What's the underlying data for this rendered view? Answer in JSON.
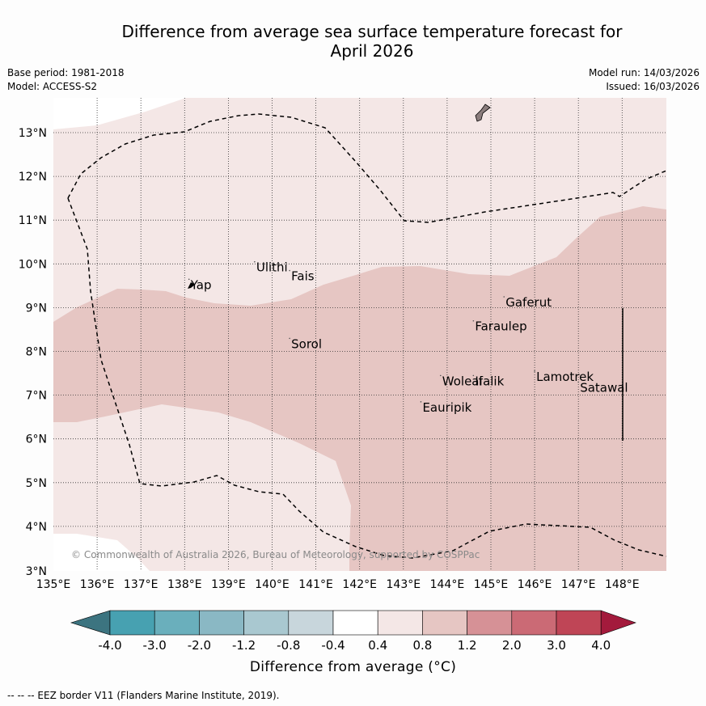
{
  "header": {
    "title_line1": "Difference from average sea surface temperature forecast for",
    "title_line2": "April 2026",
    "base_period": "Base period: 1981-2018",
    "model": "Model: ACCESS-S2",
    "model_run": "Model run: 14/03/2026",
    "issued": "Issued: 16/03/2026"
  },
  "map": {
    "lon_labels": [
      "135°E",
      "136°E",
      "137°E",
      "138°E",
      "139°E",
      "140°E",
      "141°E",
      "142°E",
      "143°E",
      "144°E",
      "145°E",
      "146°E",
      "147°E",
      "148°E"
    ],
    "lat_labels": [
      "13°N",
      "12°N",
      "11°N",
      "10°N",
      "9°N",
      "8°N",
      "7°N",
      "6°N",
      "5°N",
      "4°N",
      "3°N"
    ],
    "places": [
      {
        "name": "Yap",
        "lon": 138.1,
        "lat": 9.5
      },
      {
        "name": "Ulithi",
        "lon": 139.6,
        "lat": 9.9
      },
      {
        "name": "Fais",
        "lon": 140.4,
        "lat": 9.7
      },
      {
        "name": "Gaferut",
        "lon": 145.3,
        "lat": 9.1
      },
      {
        "name": "Faraulep",
        "lon": 144.6,
        "lat": 8.55
      },
      {
        "name": "Sorol",
        "lon": 140.4,
        "lat": 8.15
      },
      {
        "name": "Lamotrek",
        "lon": 146.0,
        "lat": 7.4
      },
      {
        "name": "Satawal",
        "lon": 147.0,
        "lat": 7.15
      },
      {
        "name": "Woleai",
        "lon": 143.85,
        "lat": 7.3
      },
      {
        "name": "Ifalik",
        "lon": 144.6,
        "lat": 7.3
      },
      {
        "name": "Eauripik",
        "lon": 143.4,
        "lat": 6.7
      }
    ],
    "copyright": "© Commonwealth of Australia 2026, Bureau of Meteorology, supported by COSPPac"
  },
  "legend": {
    "title": "Difference from average (°C)",
    "tick_labels": [
      "-4.0",
      "-3.0",
      "-2.0",
      "-1.2",
      "-0.8",
      "-0.4",
      "0.4",
      "0.8",
      "1.2",
      "2.0",
      "3.0",
      "4.0"
    ],
    "colors": {
      "below_min": "#3c7480",
      "bins": [
        "#47a1b1",
        "#6aafbc",
        "#8ab8c4",
        "#a9c8d0",
        "#c8d6dc",
        "#ffffff",
        "#f4e7e6",
        "#e6c6c3",
        "#d69196",
        "#cb6a75",
        "#bf4556"
      ],
      "above_max": "#a31a3c"
    }
  },
  "footnote": "-- -- -- EEZ border V11 (Flanders Marine Institute, 2019)."
}
